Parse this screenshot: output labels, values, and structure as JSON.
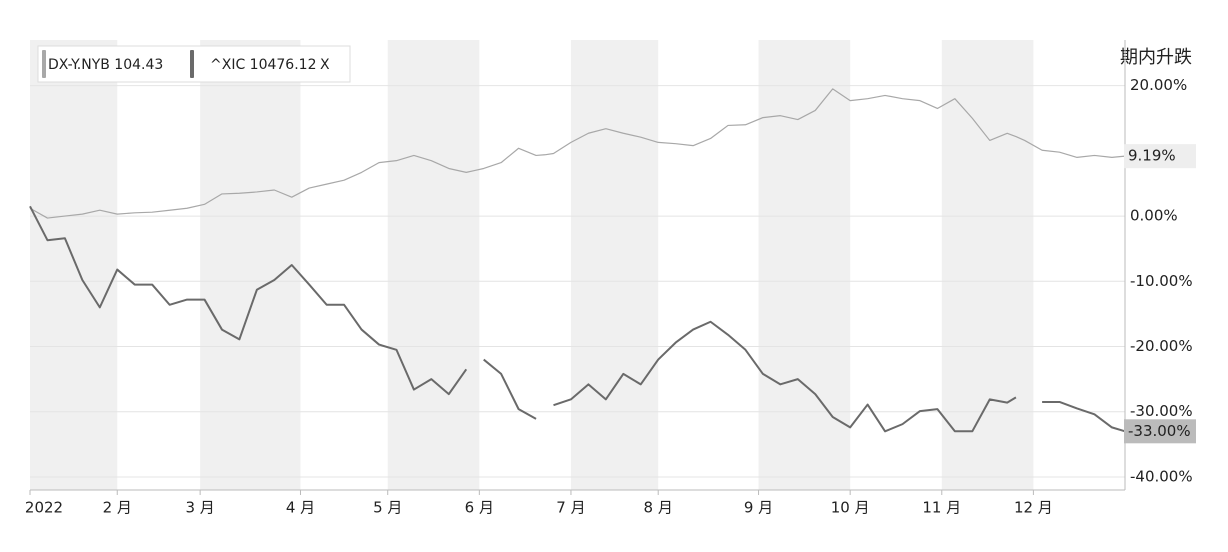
{
  "chart_data": {
    "type": "line",
    "y_axis_title": "期内升跌",
    "legend_close": "X",
    "x": [
      0,
      4,
      8,
      12,
      16,
      20,
      24,
      28,
      32,
      36,
      40,
      44,
      48,
      52,
      56,
      60,
      64,
      68,
      72,
      76,
      80,
      84,
      88,
      92,
      96,
      100,
      102,
      104,
      108,
      112,
      116,
      118,
      120,
      124,
      128,
      132,
      136,
      140,
      144,
      148,
      152,
      156,
      160,
      164,
      168,
      172,
      176,
      180,
      184,
      188,
      192,
      196,
      200,
      204,
      208,
      212,
      216,
      220,
      224,
      226,
      228,
      232,
      236,
      240,
      244,
      248,
      251
    ],
    "xlim": [
      0,
      251
    ],
    "xticks": [
      {
        "value": 0,
        "label": "2022"
      },
      {
        "value": 20,
        "label": "2 月"
      },
      {
        "value": 39,
        "label": "3 月"
      },
      {
        "value": 62,
        "label": "4 月"
      },
      {
        "value": 82,
        "label": "5 月"
      },
      {
        "value": 103,
        "label": "6 月"
      },
      {
        "value": 124,
        "label": "7 月"
      },
      {
        "value": 144,
        "label": "8 月"
      },
      {
        "value": 167,
        "label": "9 月"
      },
      {
        "value": 188,
        "label": "10 月"
      },
      {
        "value": 209,
        "label": "11 月"
      },
      {
        "value": 230,
        "label": "12 月"
      }
    ],
    "ylim": [
      -42,
      27
    ],
    "yticks": [
      {
        "value": 20,
        "label": "20.00%"
      },
      {
        "value": 0,
        "label": "0.00%"
      },
      {
        "value": -10,
        "label": "-10.00%"
      },
      {
        "value": -20,
        "label": "-20.00%"
      },
      {
        "value": -30,
        "label": "-30.00%"
      },
      {
        "value": -40,
        "label": "-40.00%"
      }
    ],
    "grid": true,
    "series": [
      {
        "name": "DX-Y.NYB 104.43",
        "color": "#a8a8a8",
        "width": 1.2,
        "end_label": "9.19%",
        "end_label_bg": "#eeeeee",
        "values": [
          1.2,
          -0.3,
          0,
          0.3,
          0.9,
          0.3,
          0.5,
          0.6,
          0.9,
          1.2,
          1.8,
          3.4,
          3.5,
          3.7,
          4.0,
          2.9,
          4.3,
          4.9,
          5.5,
          6.7,
          8.2,
          8.5,
          9.3,
          8.5,
          7.3,
          6.7,
          7.0,
          7.3,
          8.2,
          10.4,
          9.3,
          9.4,
          9.6,
          11.3,
          12.7,
          13.4,
          12.7,
          12.1,
          11.3,
          11.1,
          10.8,
          11.9,
          13.9,
          14.0,
          15.1,
          15.4,
          14.8,
          16.2,
          19.5,
          17.7,
          18.0,
          18.5,
          18.0,
          17.7,
          16.5,
          18.0,
          15.0,
          11.6,
          12.7,
          12.2,
          11.6,
          10.1,
          9.8,
          9.0,
          9.3,
          9.0,
          9.19
        ]
      },
      {
        "name": "^XIC 10476.12",
        "color": "#6a6a6a",
        "width": 2,
        "end_label": "-33.00%",
        "end_label_bg": "#bbbbbb",
        "values": [
          1.5,
          -3.7,
          -3.4,
          -9.8,
          -14.0,
          -8.2,
          -10.5,
          -10.5,
          -13.6,
          -12.8,
          -12.8,
          -17.4,
          -18.9,
          -11.3,
          -9.8,
          -7.5,
          -10.5,
          -13.6,
          -13.6,
          -17.4,
          -19.7,
          -20.5,
          -26.6,
          -25.0,
          -27.3,
          -23.5,
          null,
          -22.0,
          -24.2,
          -29.6,
          -31.1,
          null,
          -29.0,
          -28.1,
          -25.8,
          -28.1,
          -24.2,
          -25.8,
          -22.0,
          -19.4,
          -17.4,
          -16.2,
          -18.2,
          -20.5,
          -24.2,
          -25.8,
          -25.0,
          -27.3,
          -30.8,
          -32.4,
          -28.9,
          -33.0,
          -31.9,
          -29.9,
          -29.6,
          -33.0,
          -33.0,
          -28.1,
          -28.6,
          -27.8,
          null,
          -28.5,
          -28.5,
          -29.5,
          -30.4,
          -32.4,
          -33.0
        ]
      }
    ]
  }
}
